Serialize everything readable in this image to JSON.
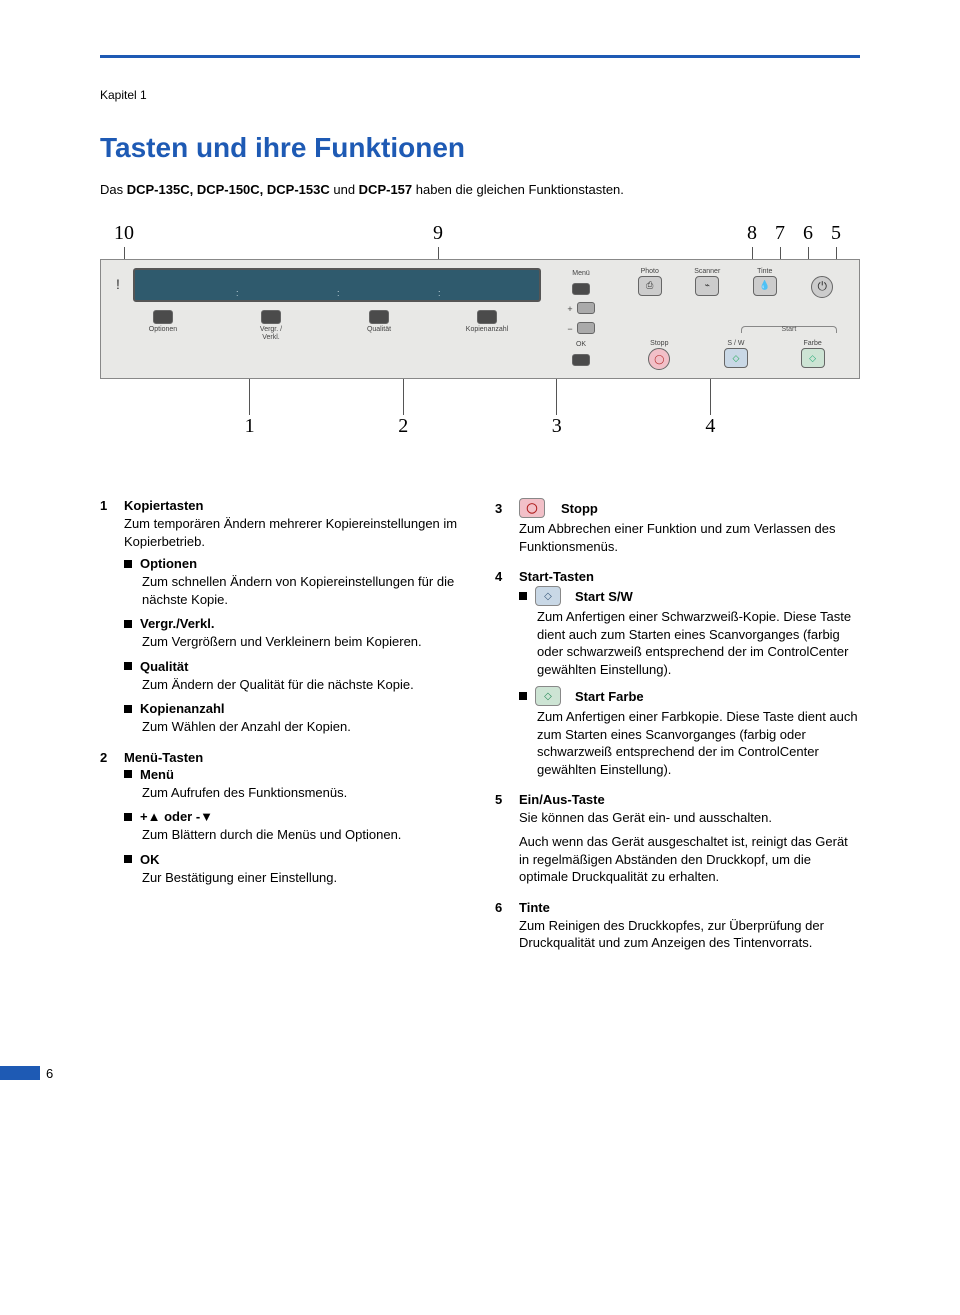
{
  "chapter": "Kapitel 1",
  "title": "Tasten und ihre Funktionen",
  "intro_prefix": "Das ",
  "intro_models": "DCP-135C, DCP-150C, DCP-153C",
  "intro_und": " und ",
  "intro_last_model": "DCP-157",
  "intro_suffix": " haben die gleichen Funktionstasten.",
  "callouts_top": [
    "10",
    "9",
    "8",
    "7",
    "6",
    "5"
  ],
  "callouts_bottom": [
    "1",
    "2",
    "3",
    "4"
  ],
  "panel": {
    "menu": "Menü",
    "ok": "OK",
    "plus": "+",
    "minus": "−",
    "photo": "Photo",
    "scanner": "Scanner",
    "tinte": "Tinte",
    "stopp": "Stopp",
    "start": "Start",
    "sw": "S / W",
    "farbe": "Farbe",
    "optionen_l1": "Optionen",
    "vergr_l1": "Vergr. /",
    "vergr_l2": "Verkl.",
    "qualitaet": "Qualität",
    "kopienanzahl": "Kopienanzahl",
    "tick": ":"
  },
  "colors": {
    "accent": "#1e5ab4",
    "panel_bg": "#e8e8e6",
    "lcd": "#2f5a6d",
    "stopp_bg": "#f2c0c8",
    "sw_bg": "#c9d8e6",
    "farbe_bg": "#cde4d4"
  },
  "left": {
    "i1_num": "1",
    "i1_head": "Kopiertasten",
    "i1_desc": "Zum temporären Ändern mehrerer Kopiereinstellungen im Kopierbetrieb.",
    "i1_b1": "Optionen",
    "i1_b1_desc": "Zum schnellen Ändern von Kopiereinstellungen für die nächste Kopie.",
    "i1_b2": "Vergr./Verkl.",
    "i1_b2_desc": "Zum Vergrößern und Verkleinern beim Kopieren.",
    "i1_b3": "Qualität",
    "i1_b3_desc": "Zum Ändern der Qualität für die nächste Kopie.",
    "i1_b4": "Kopienanzahl",
    "i1_b4_desc": "Zum Wählen der Anzahl der Kopien.",
    "i2_num": "2",
    "i2_head": "Menü-Tasten",
    "i2_b1": "Menü",
    "i2_b1_desc": "Zum Aufrufen des Funktionsmenüs.",
    "i2_b2": "+▲ oder -▼",
    "i2_b2_desc": "Zum Blättern durch die Menüs und Optionen.",
    "i2_b3": "OK",
    "i2_b3_desc": "Zur Bestätigung einer Einstellung."
  },
  "right": {
    "i3_num": "3",
    "i3_head": "Stopp",
    "i3_desc": "Zum Abbrechen einer Funktion und zum Verlassen des Funktionsmenüs.",
    "i4_num": "4",
    "i4_head": "Start-Tasten",
    "i4_b1": "Start S/W",
    "i4_b1_desc": "Zum Anfertigen einer Schwarzweiß-Kopie. Diese Taste dient auch zum Starten eines Scanvorganges (farbig oder schwarzweiß entsprechend der im ControlCenter gewählten Einstellung).",
    "i4_b2": "Start Farbe",
    "i4_b2_desc": "Zum Anfertigen einer Farbkopie. Diese Taste dient auch zum Starten eines Scanvorganges (farbig oder schwarzweiß entsprechend der im ControlCenter gewählten Einstellung).",
    "i5_num": "5",
    "i5_head": "Ein/Aus-Taste",
    "i5_desc1": "Sie können das Gerät ein- und ausschalten.",
    "i5_desc2": "Auch wenn das Gerät ausgeschaltet ist, reinigt das Gerät in regelmäßigen Abständen den Druckkopf, um die optimale Druckqualität zu erhalten.",
    "i6_num": "6",
    "i6_head": "Tinte",
    "i6_desc": "Zum Reinigen des Druckkopfes, zur Überprüfung der Druckqualität und zum Anzeigen des Tintenvorrats."
  },
  "page_number": "6"
}
